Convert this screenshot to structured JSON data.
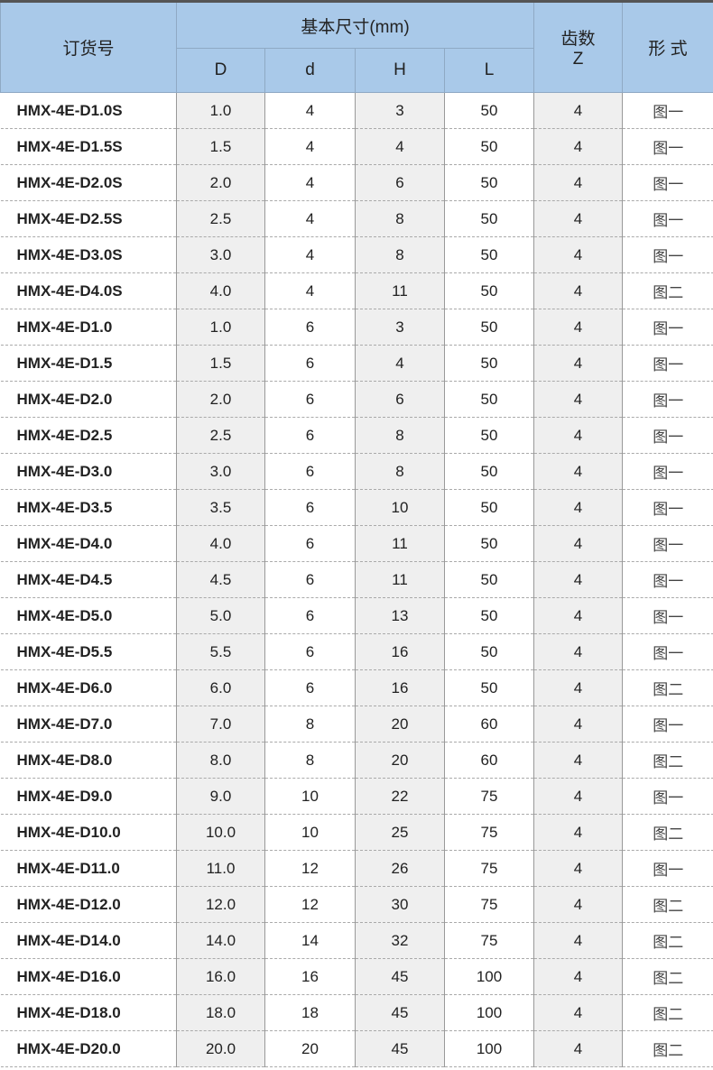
{
  "header": {
    "order_no": "订货号",
    "basic_size": "基本尺寸(mm)",
    "teeth": "齿数",
    "teeth_sym": "Z",
    "form": "形 式",
    "cols": [
      "D",
      "d",
      "H",
      "L"
    ]
  },
  "rows": [
    [
      "HMX-4E-D1.0S",
      "1.0",
      "4",
      "3",
      "50",
      "4",
      "图一"
    ],
    [
      "HMX-4E-D1.5S",
      "1.5",
      "4",
      "4",
      "50",
      "4",
      "图一"
    ],
    [
      "HMX-4E-D2.0S",
      "2.0",
      "4",
      "6",
      "50",
      "4",
      "图一"
    ],
    [
      "HMX-4E-D2.5S",
      "2.5",
      "4",
      "8",
      "50",
      "4",
      "图一"
    ],
    [
      "HMX-4E-D3.0S",
      "3.0",
      "4",
      "8",
      "50",
      "4",
      "图一"
    ],
    [
      "HMX-4E-D4.0S",
      "4.0",
      "4",
      "11",
      "50",
      "4",
      "图二"
    ],
    [
      "HMX-4E-D1.0",
      "1.0",
      "6",
      "3",
      "50",
      "4",
      "图一"
    ],
    [
      "HMX-4E-D1.5",
      "1.5",
      "6",
      "4",
      "50",
      "4",
      "图一"
    ],
    [
      "HMX-4E-D2.0",
      "2.0",
      "6",
      "6",
      "50",
      "4",
      "图一"
    ],
    [
      "HMX-4E-D2.5",
      "2.5",
      "6",
      "8",
      "50",
      "4",
      "图一"
    ],
    [
      "HMX-4E-D3.0",
      "3.0",
      "6",
      "8",
      "50",
      "4",
      "图一"
    ],
    [
      "HMX-4E-D3.5",
      "3.5",
      "6",
      "10",
      "50",
      "4",
      "图一"
    ],
    [
      "HMX-4E-D4.0",
      "4.0",
      "6",
      "11",
      "50",
      "4",
      "图一"
    ],
    [
      "HMX-4E-D4.5",
      "4.5",
      "6",
      "11",
      "50",
      "4",
      "图一"
    ],
    [
      "HMX-4E-D5.0",
      "5.0",
      "6",
      "13",
      "50",
      "4",
      "图一"
    ],
    [
      "HMX-4E-D5.5",
      "5.5",
      "6",
      "16",
      "50",
      "4",
      "图一"
    ],
    [
      "HMX-4E-D6.0",
      "6.0",
      "6",
      "16",
      "50",
      "4",
      "图二"
    ],
    [
      "HMX-4E-D7.0",
      "7.0",
      "8",
      "20",
      "60",
      "4",
      "图一"
    ],
    [
      "HMX-4E-D8.0",
      "8.0",
      "8",
      "20",
      "60",
      "4",
      "图二"
    ],
    [
      "HMX-4E-D9.0",
      "9.0",
      "10",
      "22",
      "75",
      "4",
      "图一"
    ],
    [
      "HMX-4E-D10.0",
      "10.0",
      "10",
      "25",
      "75",
      "4",
      "图二"
    ],
    [
      "HMX-4E-D11.0",
      "11.0",
      "12",
      "26",
      "75",
      "4",
      "图一"
    ],
    [
      "HMX-4E-D12.0",
      "12.0",
      "12",
      "30",
      "75",
      "4",
      "图二"
    ],
    [
      "HMX-4E-D14.0",
      "14.0",
      "14",
      "32",
      "75",
      "4",
      "图二"
    ],
    [
      "HMX-4E-D16.0",
      "16.0",
      "16",
      "45",
      "100",
      "4",
      "图二"
    ],
    [
      "HMX-4E-D18.0",
      "18.0",
      "18",
      "45",
      "100",
      "4",
      "图二"
    ],
    [
      "HMX-4E-D20.0",
      "20.0",
      "20",
      "45",
      "100",
      "4",
      "图二"
    ]
  ]
}
